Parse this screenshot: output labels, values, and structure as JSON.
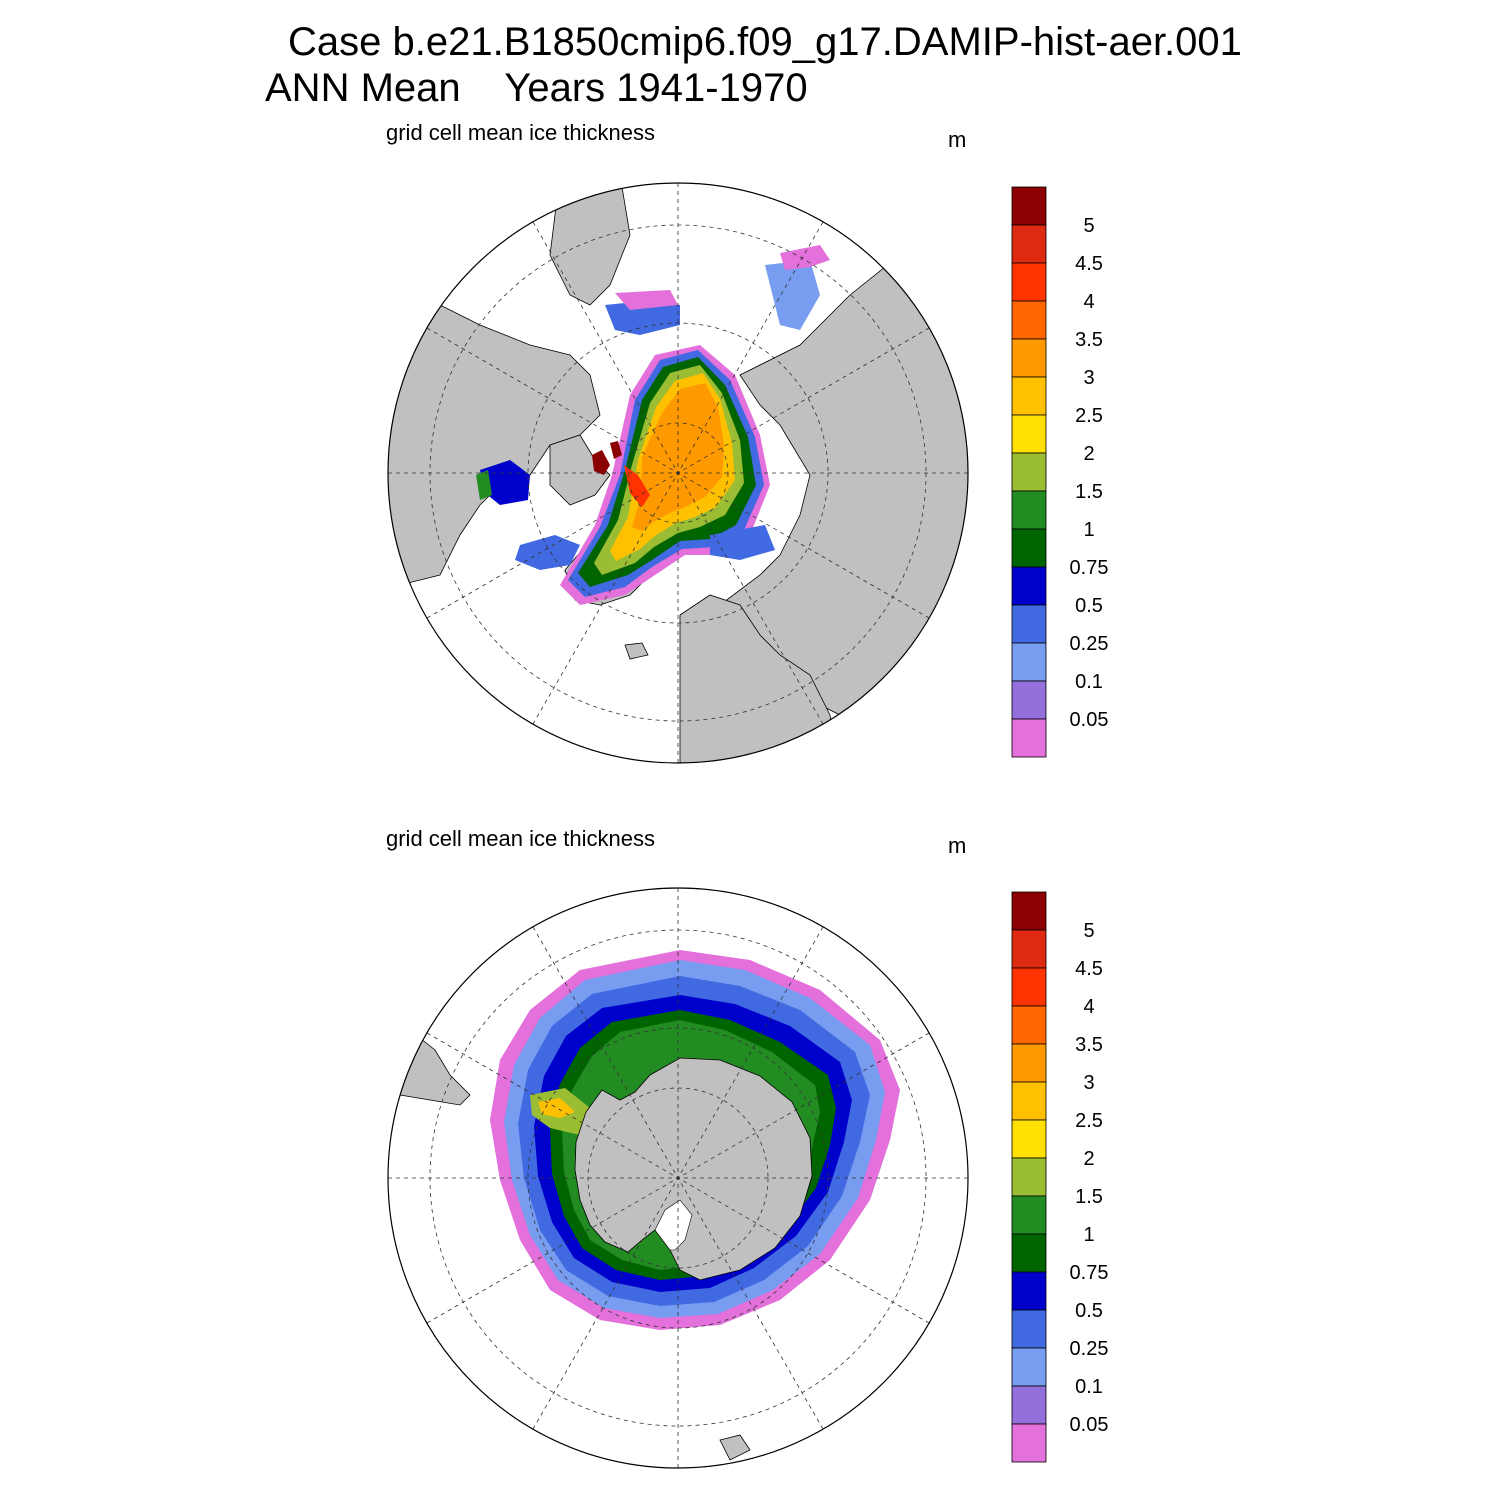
{
  "header": {
    "line1": "Case b.e21.B1850cmip6.f09_g17.DAMIP-hist-aer.001",
    "line2": "ANN Mean    Years 1941-1970"
  },
  "panels": [
    {
      "id": "north",
      "title": "grid cell mean ice thickness",
      "units": "m",
      "hemisphere": "Northern Hemisphere polar stereographic"
    },
    {
      "id": "south",
      "title": "grid cell mean ice thickness",
      "units": "m",
      "hemisphere": "Southern Hemisphere polar stereographic"
    }
  ],
  "colorbar": {
    "labels": [
      "5",
      "4.5",
      "4",
      "3.5",
      "3",
      "2.5",
      "2",
      "1.5",
      "1",
      "0.75",
      "0.5",
      "0.25",
      "0.1",
      "0.05"
    ],
    "colors_top_to_bottom": [
      "#8B0000",
      "#DD2A10",
      "#FF3300",
      "#FF6600",
      "#FF9900",
      "#FFC000",
      "#FFE000",
      "#9ABD34",
      "#228B22",
      "#006400",
      "#0000CD",
      "#4169E1",
      "#789CF0",
      "#9370DB",
      "#E370DB"
    ]
  },
  "map_style": {
    "land": "#C0C0C0",
    "ocean": "#FFFFFF",
    "outline": "#000000"
  }
}
